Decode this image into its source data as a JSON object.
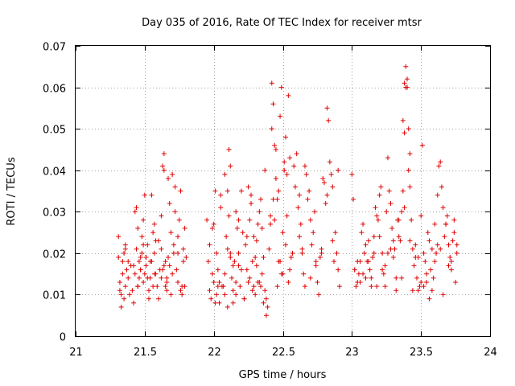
{
  "chart_data": {
    "type": "scatter",
    "title": "Day 035 of 2016, Rate Of TEC Index for receiver mtsr",
    "xlabel": "GPS time / hours",
    "ylabel": "ROTI / TECUs",
    "xlim": [
      21,
      24
    ],
    "ylim": [
      0,
      0.07
    ],
    "xticks": [
      "21",
      "21.5",
      "22",
      "22.5",
      "23",
      "23.5",
      "24"
    ],
    "xtick_values": [
      21,
      21.5,
      22,
      22.5,
      23,
      23.5,
      24
    ],
    "yticks": [
      "0",
      "0.01",
      "0.02",
      "0.03",
      "0.04",
      "0.05",
      "0.06",
      "0.07"
    ],
    "ytick_values": [
      0,
      0.01,
      0.02,
      0.03,
      0.04,
      0.05,
      0.06,
      0.07
    ],
    "grid": true,
    "marker": "+",
    "series": [
      {
        "name": "mtsr",
        "color": "#e00000",
        "x": [
          21.31,
          21.31,
          21.32,
          21.33,
          21.34,
          21.35,
          21.36,
          21.37,
          21.38,
          21.33,
          21.35,
          21.36,
          21.32,
          21.34,
          21.36,
          21.38,
          21.39,
          21.41,
          21.42,
          21.43,
          21.44,
          21.45,
          21.46,
          21.47,
          21.48,
          21.49,
          21.5,
          21.44,
          21.46,
          21.48,
          21.5,
          21.42,
          21.45,
          21.47,
          21.49,
          21.51,
          21.52,
          21.53,
          21.54,
          21.55,
          21.56,
          21.57,
          21.58,
          21.53,
          21.55,
          21.57,
          21.59,
          21.6,
          21.61,
          21.62,
          21.63,
          21.64,
          21.65,
          21.66,
          21.67,
          21.62,
          21.64,
          21.66,
          21.68,
          21.69,
          21.7,
          21.71,
          21.72,
          21.73,
          21.74,
          21.75,
          21.76,
          21.77,
          21.78,
          21.79,
          21.68,
          21.7,
          21.72,
          21.74,
          21.76,
          21.78,
          21.8,
          21.63,
          21.65,
          21.67,
          21.47,
          21.49,
          21.51,
          21.54,
          21.56,
          21.58,
          21.43,
          21.45,
          21.6,
          21.62,
          21.64,
          21.66,
          21.69,
          21.71,
          21.74,
          21.77,
          21.79,
          21.4,
          21.52,
          21.57,
          21.95,
          21.96,
          21.97,
          21.98,
          21.99,
          22.0,
          22.01,
          22.02,
          22.03,
          22.04,
          22.05,
          21.97,
          21.99,
          22.01,
          22.03,
          22.05,
          22.07,
          22.08,
          22.09,
          22.1,
          22.11,
          22.12,
          22.13,
          22.14,
          22.15,
          22.16,
          22.17,
          22.18,
          22.19,
          22.2,
          22.21,
          22.22,
          22.1,
          22.12,
          22.14,
          22.16,
          22.18,
          22.2,
          22.08,
          22.11,
          22.23,
          22.24,
          22.25,
          22.26,
          22.27,
          22.28,
          22.29,
          22.3,
          22.31,
          22.32,
          22.33,
          22.34,
          22.35,
          22.36,
          22.37,
          22.38,
          22.25,
          22.27,
          22.29,
          22.31,
          22.33,
          22.35,
          22.37,
          22.39,
          22.4,
          22.41,
          22.42,
          22.43,
          22.44,
          22.45,
          22.46,
          22.47,
          22.48,
          22.49,
          22.5,
          22.51,
          22.52,
          22.53,
          22.54,
          22.55,
          22.42,
          22.44,
          22.46,
          22.48,
          22.5,
          22.52,
          22.54,
          22.56,
          22.41,
          22.43,
          22.45,
          22.47,
          22.49,
          22.51,
          22.53,
          22.55,
          22.57,
          22.58,
          22.59,
          22.6,
          22.61,
          22.62,
          22.63,
          22.64,
          22.65,
          22.66,
          22.67,
          22.68,
          22.69,
          22.7,
          22.71,
          22.72,
          22.73,
          22.74,
          22.75,
          22.76,
          22.77,
          22.78,
          22.79,
          22.8,
          22.81,
          22.82,
          22.83,
          22.84,
          22.85,
          22.86,
          22.87,
          22.88,
          22.89,
          22.9,
          22.91,
          22.62,
          22.66,
          22.7,
          22.74,
          22.78,
          22.82,
          22.86,
          22.9,
          22.64,
          22.02,
          22.06,
          22.1,
          22.14,
          22.18,
          22.22,
          22.26,
          22.3,
          22.34,
          22.38,
          22.0,
          22.04,
          22.08,
          22.12,
          22.16,
          22.2,
          22.24,
          22.28,
          22.32,
          22.36,
          23.0,
          23.01,
          23.02,
          23.03,
          23.04,
          23.05,
          23.06,
          23.07,
          23.08,
          23.09,
          23.1,
          23.11,
          23.12,
          23.13,
          23.14,
          23.15,
          23.16,
          23.17,
          23.18,
          23.19,
          23.2,
          23.21,
          23.22,
          23.23,
          23.24,
          23.25,
          23.26,
          23.27,
          23.28,
          23.29,
          23.3,
          23.31,
          23.32,
          23.33,
          23.34,
          23.35,
          23.36,
          23.37,
          23.38,
          23.39,
          23.4,
          23.41,
          23.42,
          23.43,
          23.44,
          23.45,
          23.46,
          23.47,
          23.48,
          23.49,
          23.5,
          23.51,
          23.52,
          23.53,
          23.54,
          23.55,
          23.56,
          23.57,
          23.58,
          23.59,
          23.6,
          23.61,
          23.62,
          23.63,
          23.64,
          23.65,
          23.66,
          23.67,
          23.68,
          23.69,
          23.7,
          23.71,
          23.72,
          23.73,
          23.74,
          23.75,
          23.76,
          23.02,
          23.06,
          23.1,
          23.14,
          23.18,
          23.22,
          23.26,
          23.3,
          23.34,
          23.38,
          23.42,
          23.46,
          23.5,
          23.54,
          23.58,
          23.62,
          23.66,
          23.7,
          23.74,
          23.04,
          23.08,
          23.12,
          23.16,
          23.2,
          23.24,
          23.28,
          23.32,
          23.36,
          23.44,
          23.48,
          23.52,
          23.56,
          23.6,
          23.64,
          23.68,
          23.72,
          23.76,
          23.39,
          23.4,
          23.41,
          23.37,
          23.38,
          23.42
        ],
        "y": [
          0.019,
          0.024,
          0.011,
          0.01,
          0.018,
          0.02,
          0.012,
          0.016,
          0.014,
          0.007,
          0.009,
          0.021,
          0.013,
          0.015,
          0.022,
          0.018,
          0.01,
          0.011,
          0.017,
          0.03,
          0.031,
          0.026,
          0.014,
          0.016,
          0.02,
          0.013,
          0.034,
          0.021,
          0.018,
          0.024,
          0.015,
          0.008,
          0.012,
          0.019,
          0.028,
          0.017,
          0.022,
          0.011,
          0.014,
          0.034,
          0.025,
          0.02,
          0.015,
          0.009,
          0.018,
          0.027,
          0.012,
          0.023,
          0.016,
          0.029,
          0.041,
          0.04,
          0.018,
          0.014,
          0.038,
          0.021,
          0.044,
          0.013,
          0.017,
          0.025,
          0.039,
          0.022,
          0.03,
          0.016,
          0.02,
          0.028,
          0.035,
          0.012,
          0.018,
          0.026,
          0.032,
          0.015,
          0.036,
          0.024,
          0.011,
          0.021,
          0.019,
          0.016,
          0.012,
          0.019,
          0.016,
          0.022,
          0.019,
          0.018,
          0.012,
          0.023,
          0.015,
          0.012,
          0.009,
          0.014,
          0.017,
          0.011,
          0.01,
          0.02,
          0.013,
          0.01,
          0.012,
          0.017,
          0.014,
          0.015,
          0.028,
          0.018,
          0.011,
          0.009,
          0.015,
          0.027,
          0.035,
          0.02,
          0.012,
          0.013,
          0.034,
          0.022,
          0.026,
          0.008,
          0.016,
          0.031,
          0.012,
          0.01,
          0.024,
          0.035,
          0.045,
          0.041,
          0.014,
          0.008,
          0.018,
          0.03,
          0.026,
          0.02,
          0.012,
          0.016,
          0.025,
          0.009,
          0.021,
          0.019,
          0.017,
          0.013,
          0.028,
          0.035,
          0.039,
          0.029,
          0.022,
          0.016,
          0.013,
          0.028,
          0.034,
          0.018,
          0.012,
          0.01,
          0.023,
          0.027,
          0.03,
          0.033,
          0.015,
          0.019,
          0.011,
          0.005,
          0.036,
          0.032,
          0.024,
          0.017,
          0.013,
          0.026,
          0.04,
          0.007,
          0.021,
          0.029,
          0.05,
          0.056,
          0.028,
          0.045,
          0.033,
          0.018,
          0.053,
          0.015,
          0.025,
          0.04,
          0.048,
          0.039,
          0.058,
          0.043,
          0.061,
          0.046,
          0.012,
          0.018,
          0.015,
          0.022,
          0.013,
          0.019,
          0.027,
          0.033,
          0.038,
          0.035,
          0.06,
          0.042,
          0.029,
          0.016,
          0.02,
          0.041,
          0.036,
          0.044,
          0.031,
          0.034,
          0.027,
          0.02,
          0.015,
          0.012,
          0.039,
          0.033,
          0.035,
          0.028,
          0.022,
          0.025,
          0.03,
          0.017,
          0.013,
          0.01,
          0.019,
          0.021,
          0.038,
          0.037,
          0.032,
          0.055,
          0.052,
          0.042,
          0.039,
          0.023,
          0.018,
          0.025,
          0.02,
          0.016,
          0.012,
          0.024,
          0.041,
          0.014,
          0.018,
          0.02,
          0.034,
          0.036,
          0.04,
          0.021,
          0.01,
          0.012,
          0.007,
          0.011,
          0.017,
          0.009,
          0.014,
          0.019,
          0.012,
          0.009,
          0.013,
          0.008,
          0.015,
          0.02,
          0.01,
          0.016,
          0.024,
          0.011,
          0.013,
          0.008,
          0.039,
          0.033,
          0.016,
          0.012,
          0.018,
          0.015,
          0.013,
          0.025,
          0.027,
          0.02,
          0.022,
          0.018,
          0.023,
          0.016,
          0.014,
          0.019,
          0.024,
          0.031,
          0.029,
          0.028,
          0.034,
          0.036,
          0.02,
          0.015,
          0.012,
          0.03,
          0.043,
          0.035,
          0.032,
          0.026,
          0.019,
          0.021,
          0.014,
          0.028,
          0.024,
          0.023,
          0.03,
          0.035,
          0.049,
          0.06,
          0.062,
          0.04,
          0.036,
          0.028,
          0.021,
          0.017,
          0.022,
          0.014,
          0.011,
          0.012,
          0.029,
          0.046,
          0.02,
          0.018,
          0.013,
          0.025,
          0.023,
          0.016,
          0.021,
          0.014,
          0.027,
          0.02,
          0.034,
          0.041,
          0.042,
          0.036,
          0.031,
          0.024,
          0.027,
          0.029,
          0.022,
          0.019,
          0.016,
          0.023,
          0.028,
          0.013,
          0.02,
          0.016,
          0.018,
          0.014,
          0.012,
          0.012,
          0.016,
          0.02,
          0.023,
          0.028,
          0.031,
          0.023,
          0.019,
          0.013,
          0.015,
          0.011,
          0.022,
          0.01,
          0.017,
          0.025,
          0.013,
          0.015,
          0.018,
          0.02,
          0.024,
          0.017,
          0.021,
          0.011,
          0.014,
          0.011,
          0.019,
          0.012,
          0.009,
          0.018,
          0.021,
          0.027,
          0.018,
          0.022,
          0.065,
          0.06,
          0.05,
          0.052,
          0.061,
          0.044
        ]
      }
    ]
  }
}
